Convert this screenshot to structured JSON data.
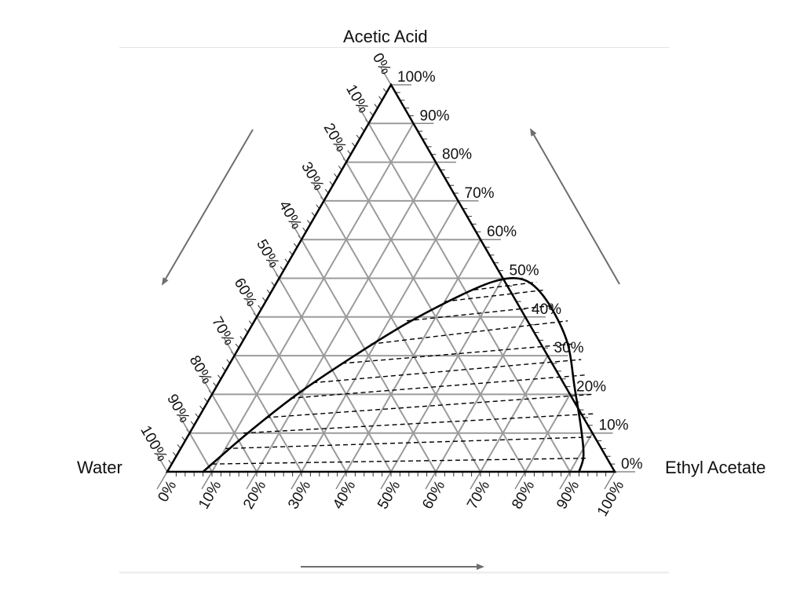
{
  "chart_data": {
    "type": "ternary",
    "title": "",
    "vertices": {
      "top": "Acetic Acid",
      "left": "Water",
      "right": "Ethyl Acetate"
    },
    "axis_ticks": {
      "bottom": [
        "0%",
        "10%",
        "20%",
        "30%",
        "40%",
        "50%",
        "60%",
        "70%",
        "80%",
        "90%",
        "100%"
      ],
      "left": [
        "0%",
        "10%",
        "20%",
        "30%",
        "40%",
        "50%",
        "60%",
        "70%",
        "80%",
        "90%",
        "100%"
      ],
      "right": [
        "0%",
        "10%",
        "20%",
        "30%",
        "40%",
        "50%",
        "60%",
        "70%",
        "80%",
        "90%",
        "100%"
      ]
    },
    "grid_step": 0.1,
    "grid": true,
    "binodal_curve": [
      {
        "ethyl_acetate": 0.08,
        "acetic_acid": 0.0
      },
      {
        "ethyl_acetate": 0.13,
        "acetic_acid": 0.1
      },
      {
        "ethyl_acetate": 0.19,
        "acetic_acid": 0.2
      },
      {
        "ethyl_acetate": 0.26,
        "acetic_acid": 0.29
      },
      {
        "ethyl_acetate": 0.34,
        "acetic_acid": 0.38
      },
      {
        "ethyl_acetate": 0.42,
        "acetic_acid": 0.45
      },
      {
        "ethyl_acetate": 0.48,
        "acetic_acid": 0.49
      },
      {
        "ethyl_acetate": 0.53,
        "acetic_acid": 0.5
      },
      {
        "ethyl_acetate": 0.58,
        "acetic_acid": 0.48
      },
      {
        "ethyl_acetate": 0.65,
        "acetic_acid": 0.42
      },
      {
        "ethyl_acetate": 0.73,
        "acetic_acid": 0.33
      },
      {
        "ethyl_acetate": 0.8,
        "acetic_acid": 0.22
      },
      {
        "ethyl_acetate": 0.87,
        "acetic_acid": 0.11
      },
      {
        "ethyl_acetate": 0.91,
        "acetic_acid": 0.04
      },
      {
        "ethyl_acetate": 0.92,
        "acetic_acid": 0.0
      }
    ],
    "tie_lines": [
      {
        "from": {
          "ethyl_acetate": 0.09,
          "acetic_acid": 0.02
        },
        "to": {
          "ethyl_acetate": 0.92,
          "acetic_acid": 0.035
        }
      },
      {
        "from": {
          "ethyl_acetate": 0.1,
          "acetic_acid": 0.06
        },
        "to": {
          "ethyl_acetate": 0.91,
          "acetic_acid": 0.09
        }
      },
      {
        "from": {
          "ethyl_acetate": 0.12,
          "acetic_acid": 0.1
        },
        "to": {
          "ethyl_acetate": 0.88,
          "acetic_acid": 0.15
        }
      },
      {
        "from": {
          "ethyl_acetate": 0.15,
          "acetic_acid": 0.14
        },
        "to": {
          "ethyl_acetate": 0.85,
          "acetic_acid": 0.2
        }
      },
      {
        "from": {
          "ethyl_acetate": 0.18,
          "acetic_acid": 0.19
        },
        "to": {
          "ethyl_acetate": 0.81,
          "acetic_acid": 0.25
        }
      },
      {
        "from": {
          "ethyl_acetate": 0.21,
          "acetic_acid": 0.23
        },
        "to": {
          "ethyl_acetate": 0.78,
          "acetic_acid": 0.29
        }
      },
      {
        "from": {
          "ethyl_acetate": 0.25,
          "acetic_acid": 0.28
        },
        "to": {
          "ethyl_acetate": 0.74,
          "acetic_acid": 0.33
        }
      },
      {
        "from": {
          "ethyl_acetate": 0.29,
          "acetic_acid": 0.33
        },
        "to": {
          "ethyl_acetate": 0.7,
          "acetic_acid": 0.39
        }
      },
      {
        "from": {
          "ethyl_acetate": 0.34,
          "acetic_acid": 0.39
        },
        "to": {
          "ethyl_acetate": 0.65,
          "acetic_acid": 0.43
        }
      },
      {
        "from": {
          "ethyl_acetate": 0.4,
          "acetic_acid": 0.44
        },
        "to": {
          "ethyl_acetate": 0.61,
          "acetic_acid": 0.47
        }
      },
      {
        "from": {
          "ethyl_acetate": 0.45,
          "acetic_acid": 0.47
        },
        "to": {
          "ethyl_acetate": 0.58,
          "acetic_acid": 0.49
        }
      }
    ],
    "direction_arrows": [
      "bottom-right",
      "left-down",
      "right-up"
    ],
    "colors": {
      "curve": "#000000",
      "grid": "#9b9b9b",
      "frame": "#000000",
      "arrow": "#6e6e6e"
    }
  }
}
